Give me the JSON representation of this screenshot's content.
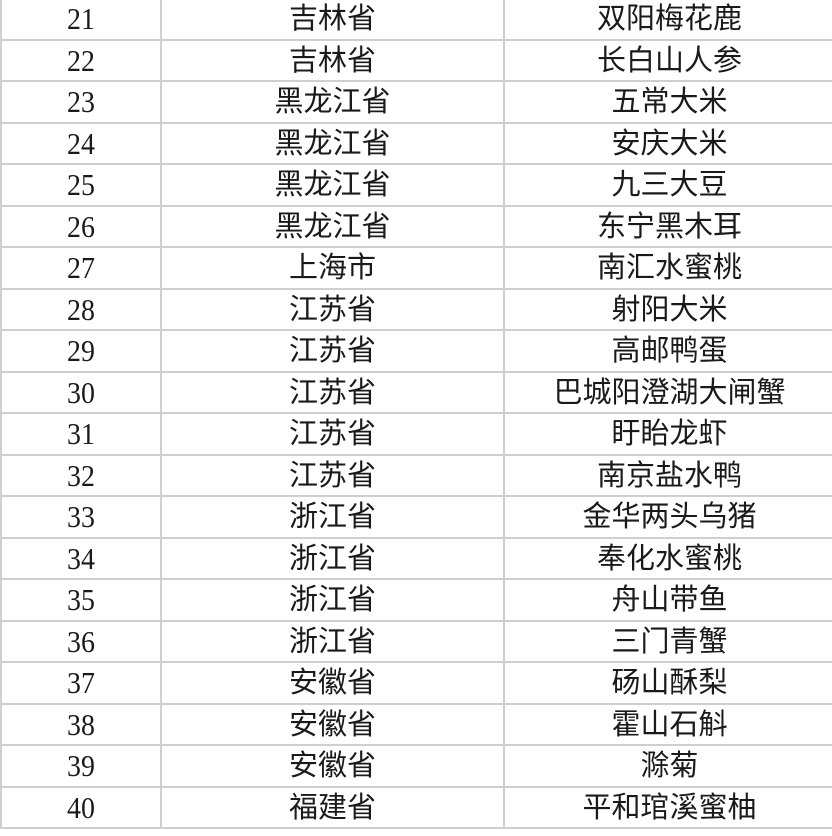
{
  "rows": [
    {
      "no": "21",
      "province": "吉林省",
      "product": "双阳梅花鹿"
    },
    {
      "no": "22",
      "province": "吉林省",
      "product": "长白山人参"
    },
    {
      "no": "23",
      "province": "黑龙江省",
      "product": "五常大米"
    },
    {
      "no": "24",
      "province": "黑龙江省",
      "product": "安庆大米"
    },
    {
      "no": "25",
      "province": "黑龙江省",
      "product": "九三大豆"
    },
    {
      "no": "26",
      "province": "黑龙江省",
      "product": "东宁黑木耳"
    },
    {
      "no": "27",
      "province": "上海市",
      "product": "南汇水蜜桃"
    },
    {
      "no": "28",
      "province": "江苏省",
      "product": "射阳大米"
    },
    {
      "no": "29",
      "province": "江苏省",
      "product": "高邮鸭蛋"
    },
    {
      "no": "30",
      "province": "江苏省",
      "product": "巴城阳澄湖大闸蟹"
    },
    {
      "no": "31",
      "province": "江苏省",
      "product": "盱眙龙虾"
    },
    {
      "no": "32",
      "province": "江苏省",
      "product": "南京盐水鸭"
    },
    {
      "no": "33",
      "province": "浙江省",
      "product": "金华两头乌猪"
    },
    {
      "no": "34",
      "province": "浙江省",
      "product": "奉化水蜜桃"
    },
    {
      "no": "35",
      "province": "浙江省",
      "product": "舟山带鱼"
    },
    {
      "no": "36",
      "province": "浙江省",
      "product": "三门青蟹"
    },
    {
      "no": "37",
      "province": "安徽省",
      "product": "砀山酥梨"
    },
    {
      "no": "38",
      "province": "安徽省",
      "product": "霍山石斛"
    },
    {
      "no": "39",
      "province": "安徽省",
      "product": "滁菊"
    },
    {
      "no": "40",
      "province": "福建省",
      "product": "平和琯溪蜜柚"
    }
  ]
}
